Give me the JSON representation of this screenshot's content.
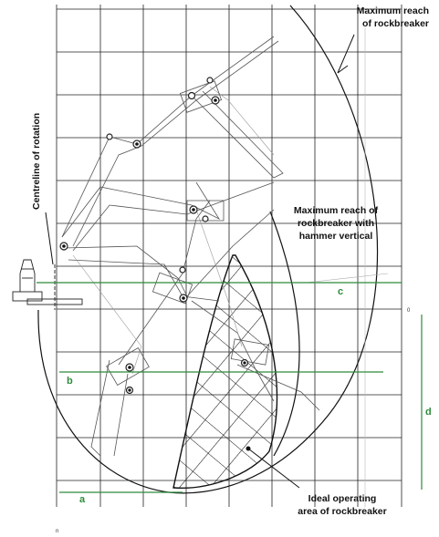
{
  "labels": {
    "max_reach": [
      "Maximum reach",
      "of rockbreaker"
    ],
    "centreline": "Centreline of rotation",
    "max_reach_vertical": [
      "Maximum reach of",
      "rockbreaker with",
      "hammer vertical"
    ],
    "ideal_area": [
      "Ideal operating",
      "area of rockbreaker"
    ],
    "a": "a",
    "b": "b",
    "c": "c",
    "d": "d",
    "mark_right": "0",
    "mark_bottom": "n"
  }
}
